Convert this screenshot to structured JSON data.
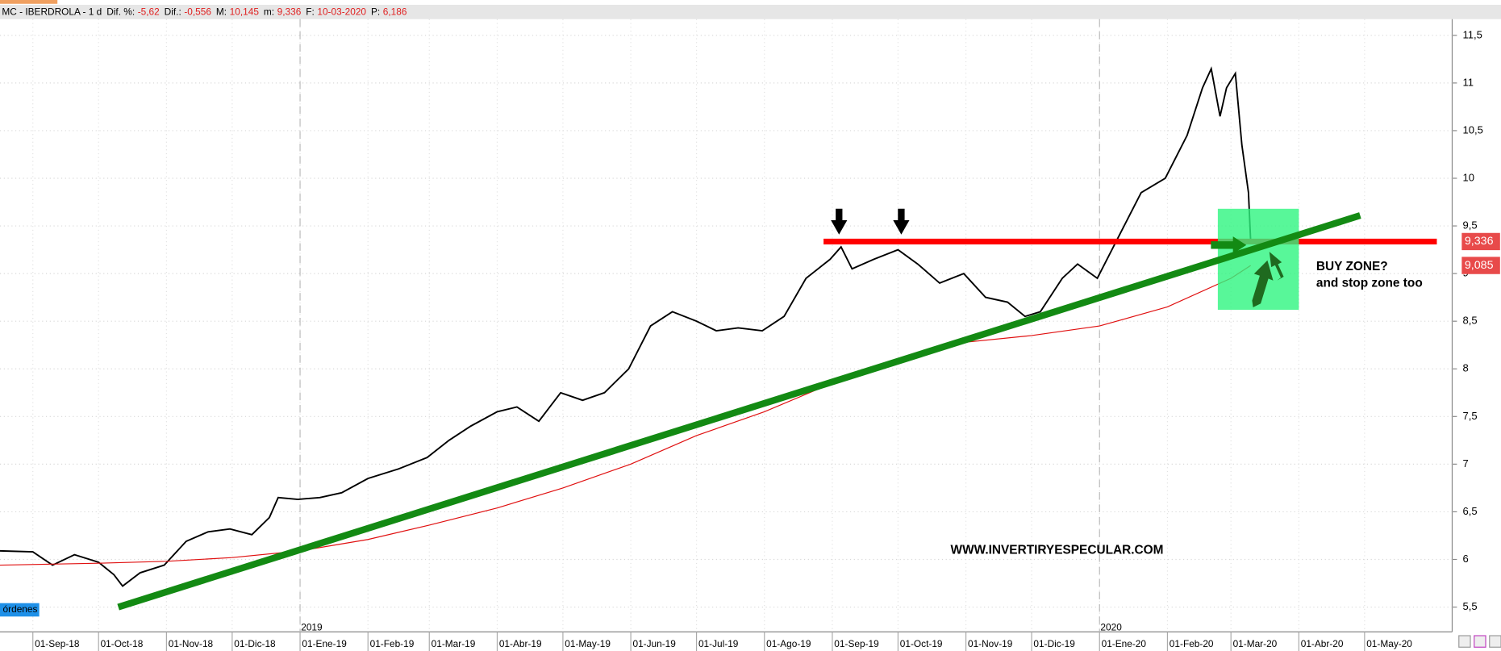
{
  "header": {
    "symbol": "MC - IBERDROLA -  1 d",
    "fields": [
      {
        "label": "Dif. %:",
        "value": "-5,62"
      },
      {
        "label": "Dif.:",
        "value": "-0,556"
      },
      {
        "label": "M:",
        "value": "10,145"
      },
      {
        "label": "m:",
        "value": "9,336"
      },
      {
        "label": "F:",
        "value": "10-03-2020"
      },
      {
        "label": "P:",
        "value": "6,186"
      }
    ]
  },
  "chart_data": {
    "type": "line",
    "xlim": [
      "2018-08-17",
      "2020-06-10"
    ],
    "ylim": [
      5.24,
      11.67
    ],
    "yticks": [
      {
        "value": 5.5,
        "label": "5,5"
      },
      6,
      {
        "value": 6.5,
        "label": "6,5"
      },
      7,
      {
        "value": 7.5,
        "label": "7,5"
      },
      8,
      {
        "value": 8.5,
        "label": "8,5"
      },
      9,
      {
        "value": 9.5,
        "label": "9,5"
      },
      10,
      {
        "value": 10.5,
        "label": "10,5"
      },
      11,
      {
        "value": 11.5,
        "label": "11,5"
      }
    ],
    "xticks": [
      {
        "value": "2018-09-01",
        "label": "01-Sep-18"
      },
      {
        "value": "2018-10-01",
        "label": "01-Oct-18"
      },
      {
        "value": "2018-11-01",
        "label": "01-Nov-18"
      },
      {
        "value": "2018-12-01",
        "label": "01-Dic-18"
      },
      {
        "value": "2019-01-01",
        "label": "01-Ene-19"
      },
      {
        "value": "2019-02-01",
        "label": "01-Feb-19"
      },
      {
        "value": "2019-03-01",
        "label": "01-Mar-19"
      },
      {
        "value": "2019-04-01",
        "label": "01-Abr-19"
      },
      {
        "value": "2019-05-01",
        "label": "01-May-19"
      },
      {
        "value": "2019-06-01",
        "label": "01-Jun-19"
      },
      {
        "value": "2019-07-01",
        "label": "01-Jul-19"
      },
      {
        "value": "2019-08-01",
        "label": "01-Ago-19"
      },
      {
        "value": "2019-09-01",
        "label": "01-Sep-19"
      },
      {
        "value": "2019-10-01",
        "label": "01-Oct-19"
      },
      {
        "value": "2019-11-01",
        "label": "01-Nov-19"
      },
      {
        "value": "2019-12-01",
        "label": "01-Dic-19"
      },
      {
        "value": "2020-01-01",
        "label": "01-Ene-20"
      },
      {
        "value": "2020-02-01",
        "label": "01-Feb-20"
      },
      {
        "value": "2020-03-01",
        "label": "01-Mar-20"
      },
      {
        "value": "2020-04-01",
        "label": "01-Abr-20"
      },
      {
        "value": "2020-05-01",
        "label": "01-May-20"
      }
    ],
    "year_markers": [
      {
        "value": "2019-01-01",
        "label": "2019"
      },
      {
        "value": "2020-01-01",
        "label": "2020"
      }
    ],
    "grid": true,
    "series": [
      {
        "name": "IBERDROLA",
        "color": "#000000",
        "x": [
          "2018-08-17",
          "2018-09-01",
          "2018-09-10",
          "2018-09-20",
          "2018-10-01",
          "2018-10-08",
          "2018-10-12",
          "2018-10-20",
          "2018-10-31",
          "2018-11-10",
          "2018-11-20",
          "2018-11-30",
          "2018-12-10",
          "2018-12-18",
          "2018-12-22",
          "2018-12-31",
          "2019-01-10",
          "2019-01-20",
          "2019-02-01",
          "2019-02-15",
          "2019-02-28",
          "2019-03-10",
          "2019-03-20",
          "2019-04-01",
          "2019-04-10",
          "2019-04-20",
          "2019-04-30",
          "2019-05-10",
          "2019-05-20",
          "2019-05-31",
          "2019-06-10",
          "2019-06-20",
          "2019-07-01",
          "2019-07-10",
          "2019-07-20",
          "2019-07-31",
          "2019-08-10",
          "2019-08-20",
          "2019-08-31",
          "2019-09-05",
          "2019-09-10",
          "2019-09-20",
          "2019-10-01",
          "2019-10-10",
          "2019-10-20",
          "2019-10-31",
          "2019-11-10",
          "2019-11-20",
          "2019-11-28",
          "2019-12-05",
          "2019-12-15",
          "2019-12-22",
          "2019-12-31",
          "2020-01-10",
          "2020-01-20",
          "2020-01-31",
          "2020-02-10",
          "2020-02-17",
          "2020-02-21",
          "2020-02-25",
          "2020-02-28",
          "2020-03-03",
          "2020-03-06",
          "2020-03-09",
          "2020-03-10"
        ],
        "values": [
          6.09,
          6.08,
          5.94,
          6.05,
          5.97,
          5.84,
          5.72,
          5.86,
          5.94,
          6.19,
          6.29,
          6.32,
          6.26,
          6.44,
          6.65,
          6.63,
          6.65,
          6.7,
          6.85,
          6.95,
          7.07,
          7.25,
          7.4,
          7.55,
          7.6,
          7.45,
          7.75,
          7.67,
          7.75,
          8.0,
          8.45,
          8.6,
          8.5,
          8.4,
          8.43,
          8.4,
          8.55,
          8.95,
          9.15,
          9.28,
          9.05,
          9.15,
          9.25,
          9.1,
          8.9,
          9.0,
          8.75,
          8.7,
          8.55,
          8.6,
          8.95,
          9.1,
          8.95,
          9.4,
          9.85,
          10.0,
          10.45,
          10.95,
          11.15,
          10.65,
          10.95,
          11.1,
          10.35,
          9.85,
          9.336
        ]
      },
      {
        "name": "MA",
        "color": "#e01010",
        "x": [
          "2018-08-17",
          "2018-10-01",
          "2018-11-01",
          "2018-12-01",
          "2019-01-01",
          "2019-02-01",
          "2019-03-01",
          "2019-04-01",
          "2019-05-01",
          "2019-06-01",
          "2019-07-01",
          "2019-08-01",
          "2019-09-01",
          "2019-10-01",
          "2019-11-01",
          "2019-12-01",
          "2020-01-01",
          "2020-02-01",
          "2020-03-01",
          "2020-03-10"
        ],
        "values": [
          5.94,
          5.96,
          5.98,
          6.02,
          6.09,
          6.21,
          6.36,
          6.54,
          6.75,
          7.0,
          7.3,
          7.55,
          7.85,
          8.1,
          8.28,
          8.35,
          8.45,
          8.65,
          8.95,
          9.085
        ]
      }
    ],
    "last_price_labels": [
      {
        "value": 9.336,
        "label": "9,336",
        "color": "#e84a4a"
      },
      {
        "value": 9.085,
        "label": "9,085",
        "color": "#e84a4a"
      }
    ],
    "trendline": {
      "color": "#138a13",
      "x": [
        "2018-10-10",
        "2020-04-29"
      ],
      "values": [
        5.5,
        9.61
      ]
    },
    "resistance": {
      "color": "#ff0000",
      "x": [
        "2019-08-28",
        "2020-06-03"
      ],
      "values": [
        9.336,
        9.336
      ]
    },
    "buy_zone": {
      "color": "#2ef57f",
      "x": [
        "2020-02-24",
        "2020-04-01"
      ],
      "values": [
        9.68,
        8.62
      ]
    },
    "annotations": [
      "BUY ZONE?",
      "and stop zone too"
    ]
  },
  "watermark": "WWW.INVERTIRYESPECULAR.COM",
  "button": "órdenes"
}
